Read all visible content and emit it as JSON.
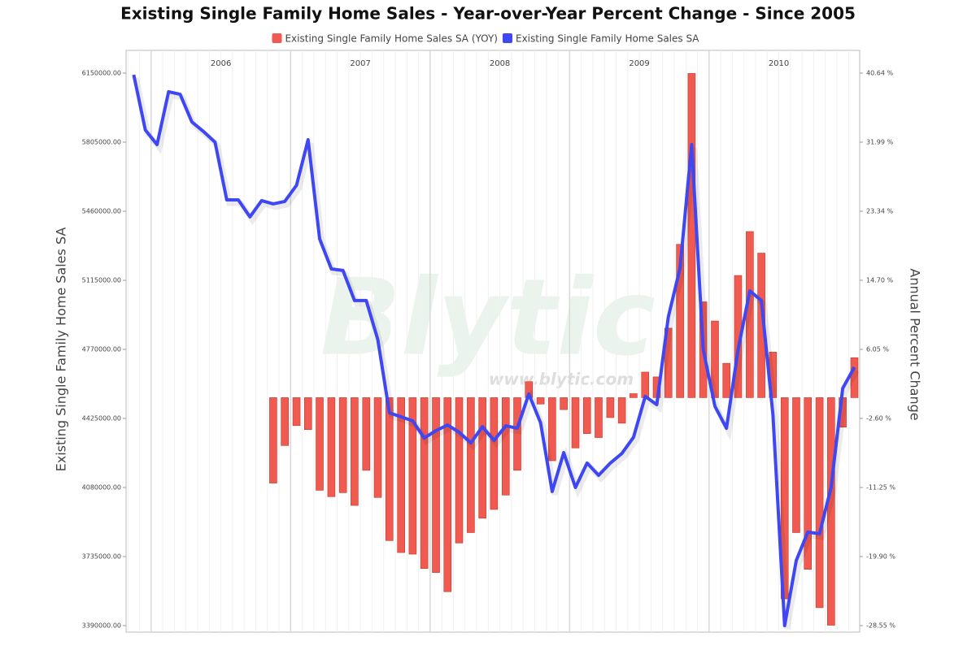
{
  "chart_data": {
    "type": "bar_line",
    "title": "Existing Single Family Home Sales - Year-over-Year Percent Change - Since 2005",
    "y_label": "Existing Single Family Home Sales SA",
    "y2_label": "Annual Percent Change",
    "watermark": "Blytic",
    "watermark_url": "www.blytic.com",
    "x": [
      2005.875,
      2005.958,
      2006.042,
      2006.125,
      2006.208,
      2006.292,
      2006.375,
      2006.458,
      2006.542,
      2006.625,
      2006.708,
      2006.792,
      2006.875,
      2006.958,
      2007.042,
      2007.125,
      2007.208,
      2007.292,
      2007.375,
      2007.458,
      2007.542,
      2007.625,
      2007.708,
      2007.792,
      2007.875,
      2007.958,
      2008.042,
      2008.125,
      2008.208,
      2008.292,
      2008.375,
      2008.458,
      2008.542,
      2008.625,
      2008.708,
      2008.792,
      2008.875,
      2008.958,
      2009.042,
      2009.125,
      2009.208,
      2009.292,
      2009.375,
      2009.458,
      2009.542,
      2009.625,
      2009.708,
      2009.792,
      2009.875,
      2009.958,
      2010.042,
      2010.125,
      2010.208,
      2010.292,
      2010.375,
      2010.458,
      2010.542,
      2010.625,
      2010.708,
      2010.792,
      2010.875,
      2010.958,
      2011.042
    ],
    "xlim": [
      2005.82,
      2011.08
    ],
    "xticks": [
      {
        "value": 2006,
        "label": "2006"
      },
      {
        "value": 2007,
        "label": "2007"
      },
      {
        "value": 2008,
        "label": "2008"
      },
      {
        "value": 2009,
        "label": "2009"
      },
      {
        "value": 2010,
        "label": "2010"
      }
    ],
    "ylim": [
      3390000,
      6150000
    ],
    "yticks": [
      {
        "value": 6150000,
        "label": "6150000.00"
      },
      {
        "value": 5805000,
        "label": "5805000.00"
      },
      {
        "value": 5460000,
        "label": "5460000.00"
      },
      {
        "value": 5115000,
        "label": "5115000.00"
      },
      {
        "value": 4770000,
        "label": "4770000.00"
      },
      {
        "value": 4425000,
        "label": "4425000.00"
      },
      {
        "value": 4080000,
        "label": "4080000.00"
      },
      {
        "value": 3735000,
        "label": "3735000.00"
      },
      {
        "value": 3390000,
        "label": "3390000.00"
      }
    ],
    "y2lim": [
      -28.55,
      40.64
    ],
    "y2ticks": [
      {
        "value": 40.64,
        "label": "40.64 %"
      },
      {
        "value": 31.99,
        "label": "31.99 %"
      },
      {
        "value": 23.34,
        "label": "23.34 %"
      },
      {
        "value": 14.7,
        "label": "14.70 %"
      },
      {
        "value": 6.05,
        "label": "6.05 %"
      },
      {
        "value": -2.6,
        "label": "-2.60 %"
      },
      {
        "value": -11.25,
        "label": "-11.25 %"
      },
      {
        "value": -19.9,
        "label": "-19.90 %"
      },
      {
        "value": -28.55,
        "label": "-28.55 %"
      }
    ],
    "grid": true,
    "legend": "top",
    "series": [
      {
        "name": "Existing Single Family Home Sales SA (YOY)",
        "color": "#f05a50",
        "type": "bar",
        "axis": "y2",
        "values": [
          null,
          null,
          null,
          null,
          null,
          null,
          null,
          null,
          null,
          null,
          null,
          null,
          -10.7,
          -6.0,
          -3.5,
          -4.0,
          -11.6,
          -12.4,
          -11.9,
          -13.5,
          -9.1,
          -12.5,
          -17.9,
          -19.4,
          -19.6,
          -21.4,
          -21.9,
          -24.3,
          -18.2,
          -16.9,
          -15.1,
          -14.0,
          -12.2,
          -9.1,
          2.0,
          -0.8,
          -7.9,
          -1.5,
          -6.3,
          -4.5,
          -5.0,
          -2.5,
          -3.2,
          0.5,
          3.2,
          2.6,
          8.7,
          19.2,
          40.6,
          12.0,
          9.6,
          4.3,
          15.3,
          20.8,
          18.1,
          5.7,
          -25.2,
          -16.9,
          -21.5,
          -26.3,
          -28.5,
          -3.7,
          5.0
        ]
      },
      {
        "name": "Existing Single Family Home Sales SA",
        "color": "#3f47f2",
        "type": "line",
        "values": [
          6142000,
          5866000,
          5793000,
          6057000,
          6044000,
          5906000,
          5858000,
          5805000,
          5517000,
          5517000,
          5432000,
          5513000,
          5497000,
          5509000,
          5590000,
          5817000,
          5322000,
          5172000,
          5164000,
          5014000,
          5014000,
          4819000,
          4453000,
          4433000,
          4413000,
          4327000,
          4364000,
          4392000,
          4356000,
          4303000,
          4384000,
          4315000,
          4388000,
          4376000,
          4547000,
          4404000,
          4060000,
          4254000,
          4080000,
          4202000,
          4141000,
          4202000,
          4250000,
          4331000,
          4535000,
          4494000,
          4932000,
          5176000,
          5793000,
          4770000,
          4486000,
          4376000,
          4770000,
          5062000,
          5014000,
          4445000,
          3390000,
          3715000,
          3857000,
          3849000,
          4080000,
          4575000,
          4681000
        ]
      }
    ]
  }
}
